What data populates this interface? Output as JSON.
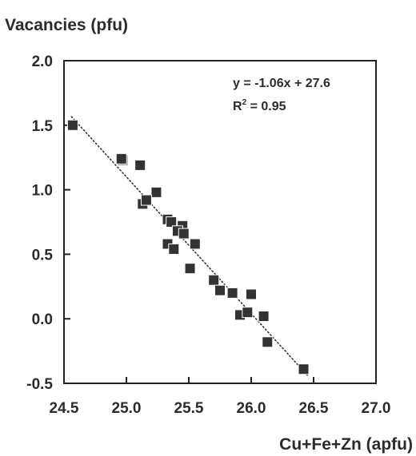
{
  "chart_data": {
    "type": "scatter",
    "xlabel": "Cu+Fe+Zn (apfu)",
    "ylabel": "Vacancies (pfu)",
    "xlim": [
      24.5,
      27.0
    ],
    "ylim": [
      -0.5,
      2.0
    ],
    "x_ticks": [
      24.5,
      25.0,
      25.5,
      26.0,
      26.5,
      27.0
    ],
    "y_ticks": [
      2.0,
      1.5,
      1.0,
      0.5,
      0.0,
      -0.5
    ],
    "x_tick_labels": [
      "24.5",
      "25.0",
      "25.5",
      "26.0",
      "26.5",
      "27.0"
    ],
    "y_tick_labels": [
      "2.0",
      "1.5",
      "1.0",
      "0.5",
      "0.0",
      "-0.5"
    ],
    "grid": false,
    "annotation": {
      "equation": "y = -1.06x + 27.6",
      "r2_prefix": "R",
      "r2_sup": "2",
      "r2_suffix": " = 0.95"
    },
    "trendline": {
      "slope": -1.06,
      "intercept": 27.6,
      "x_range": [
        24.56,
        26.45
      ],
      "style": "dotted"
    },
    "series": [
      {
        "points": [
          {
            "x": 24.57,
            "y": 1.5
          },
          {
            "x": 24.97,
            "y": 1.23
          },
          {
            "x": 24.96,
            "y": 1.24
          },
          {
            "x": 25.11,
            "y": 1.19
          },
          {
            "x": 25.24,
            "y": 0.98
          },
          {
            "x": 25.13,
            "y": 0.89
          },
          {
            "x": 25.16,
            "y": 0.92
          },
          {
            "x": 25.33,
            "y": 0.77
          },
          {
            "x": 25.36,
            "y": 0.75
          },
          {
            "x": 25.45,
            "y": 0.72
          },
          {
            "x": 25.41,
            "y": 0.68
          },
          {
            "x": 25.46,
            "y": 0.66
          },
          {
            "x": 25.33,
            "y": 0.58
          },
          {
            "x": 25.55,
            "y": 0.58
          },
          {
            "x": 25.38,
            "y": 0.54
          },
          {
            "x": 25.51,
            "y": 0.39
          },
          {
            "x": 25.7,
            "y": 0.3
          },
          {
            "x": 25.75,
            "y": 0.22
          },
          {
            "x": 25.85,
            "y": 0.2
          },
          {
            "x": 26.0,
            "y": 0.19
          },
          {
            "x": 25.91,
            "y": 0.03
          },
          {
            "x": 25.97,
            "y": 0.05
          },
          {
            "x": 26.1,
            "y": 0.02
          },
          {
            "x": 26.13,
            "y": -0.18
          },
          {
            "x": 26.42,
            "y": -0.39
          }
        ]
      }
    ]
  }
}
